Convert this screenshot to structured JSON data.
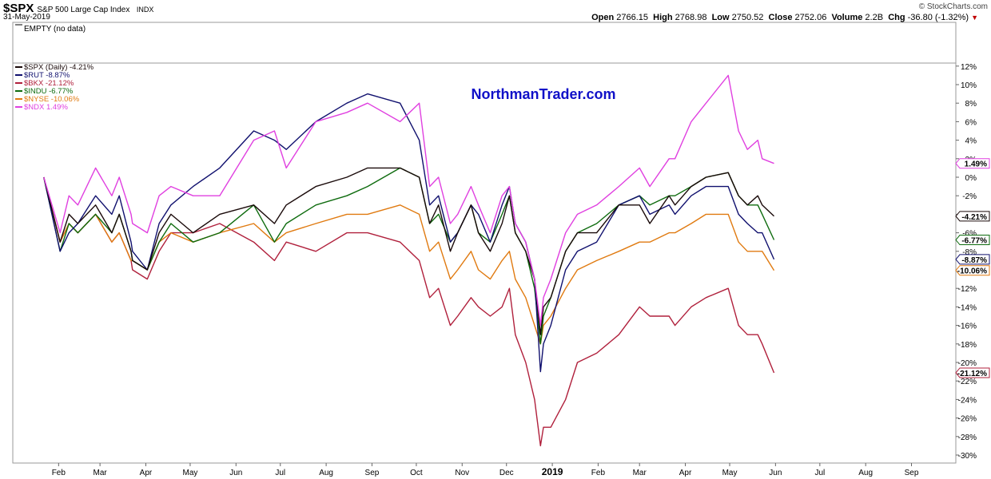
{
  "header": {
    "symbol": "$SPX",
    "description": "S&P 500 Large Cap Index",
    "exchange": "INDX",
    "date": "31-May-2019",
    "credit": "© StockCharts.com",
    "quote": {
      "open_label": "Open",
      "open": "2766.15",
      "high_label": "High",
      "high": "2768.98",
      "low_label": "Low",
      "low": "2750.52",
      "close_label": "Close",
      "close": "2752.06",
      "volume_label": "Volume",
      "volume": "2.2B",
      "chg_label": "Chg",
      "chg": "-36.80 (-1.32%)"
    }
  },
  "empty_panel_label": "EMPTY (no data)",
  "watermark": "NorthmanTrader.com",
  "colors": {
    "SPX": "#1a0a0a",
    "RUT": "#10106e",
    "BKX": "#b0203c",
    "INDU": "#0e6b0e",
    "NYSE": "#e07a10",
    "NDX": "#e040e0",
    "watermark": "#1010c8"
  },
  "chart_data": {
    "type": "line",
    "title": "$SPX S&P 500 Large Cap Index",
    "xlabel": "",
    "ylabel": "",
    "y_unit": "%",
    "ylim": [
      -31,
      13
    ],
    "grid": false,
    "legend_position": "top-left",
    "x_ticks": [
      "Feb",
      "Mar",
      "Apr",
      "May",
      "Jun",
      "Jul",
      "Aug",
      "Sep",
      "Oct",
      "Nov",
      "Dec",
      "2019",
      "Feb",
      "Mar",
      "Apr",
      "May",
      "Jun",
      "Jul",
      "Aug",
      "Sep"
    ],
    "y_ticks": [
      "12%",
      "10%",
      "8%",
      "6%",
      "4%",
      "2%",
      "0%",
      "-2%",
      "-4%",
      "-6%",
      "-8%",
      "-10%",
      "-12%",
      "-14%",
      "-16%",
      "-18%",
      "-20%",
      "-22%",
      "-24%",
      "-26%",
      "-28%",
      "-30%"
    ],
    "y_tick_values": [
      12,
      10,
      8,
      6,
      4,
      2,
      0,
      -2,
      -4,
      -6,
      -8,
      -10,
      -12,
      -14,
      -16,
      -18,
      -20,
      -22,
      -24,
      -26,
      -28,
      -30
    ],
    "x_dates": [
      "2018-01-22",
      "2018-02-02",
      "2018-02-08",
      "2018-02-14",
      "2018-02-26",
      "2018-03-09",
      "2018-03-14",
      "2018-03-22",
      "2018-03-23",
      "2018-04-02",
      "2018-04-10",
      "2018-04-18",
      "2018-05-03",
      "2018-05-21",
      "2018-06-13",
      "2018-06-27",
      "2018-07-05",
      "2018-07-25",
      "2018-08-15",
      "2018-08-29",
      "2018-09-20",
      "2018-10-03",
      "2018-10-10",
      "2018-10-16",
      "2018-10-24",
      "2018-10-29",
      "2018-11-07",
      "2018-11-12",
      "2018-11-20",
      "2018-11-28",
      "2018-12-03",
      "2018-12-07",
      "2018-12-14",
      "2018-12-20",
      "2018-12-24",
      "2018-12-26",
      "2018-12-31",
      "2019-01-10",
      "2019-01-18",
      "2019-01-31",
      "2019-02-15",
      "2019-03-01",
      "2019-03-08",
      "2019-03-21",
      "2019-03-25",
      "2019-04-05",
      "2019-04-15",
      "2019-04-30",
      "2019-05-07",
      "2019-05-13",
      "2019-05-20",
      "2019-05-23",
      "2019-05-31"
    ],
    "series": [
      {
        "name": "$SPX (Daily)",
        "label": "$SPX (Daily) -4.21%",
        "final": "-4.21%",
        "color_key": "SPX",
        "values": [
          0,
          -7,
          -4,
          -5,
          -3,
          -6,
          -4,
          -8,
          -9,
          -10,
          -6,
          -4,
          -6,
          -4,
          -3,
          -5,
          -3,
          -1,
          0,
          1,
          1,
          0,
          -5,
          -3,
          -8,
          -6,
          -3,
          -6,
          -8,
          -5,
          -2,
          -6,
          -8,
          -11,
          -17,
          -14,
          -13,
          -8,
          -6,
          -6,
          -3,
          -3,
          -5,
          -2,
          -3,
          -1,
          0,
          0.5,
          -2,
          -3,
          -2,
          -3,
          -4.21
        ]
      },
      {
        "name": "$RUT",
        "label": "$RUT -8.87%",
        "final": "-8.87%",
        "color_key": "RUT",
        "values": [
          0,
          -8,
          -6,
          -5,
          -2,
          -4,
          -2,
          -7,
          -8,
          -10,
          -5,
          -3,
          -1,
          1,
          5,
          4,
          3,
          6,
          8,
          9,
          8,
          4,
          -3,
          -2,
          -7,
          -6,
          -3,
          -4,
          -7,
          -3,
          -1,
          -5,
          -7,
          -11,
          -21,
          -18,
          -16,
          -10,
          -8,
          -7,
          -3,
          -2,
          -4,
          -3,
          -4,
          -2,
          -1,
          -1,
          -4,
          -5,
          -6,
          -6,
          -8.87
        ]
      },
      {
        "name": "$BKX",
        "label": "$BKX -21.12%",
        "final": "-21.12%",
        "color_key": "BKX",
        "values": [
          0,
          -7,
          -5,
          -6,
          -4,
          -7,
          -6,
          -9,
          -10,
          -11,
          -8,
          -6,
          -6,
          -5,
          -7,
          -9,
          -7,
          -8,
          -6,
          -6,
          -7,
          -9,
          -13,
          -12,
          -16,
          -15,
          -13,
          -14,
          -15,
          -14,
          -12,
          -17,
          -20,
          -24,
          -29,
          -27,
          -27,
          -24,
          -20,
          -19,
          -17,
          -14,
          -15,
          -15,
          -16,
          -14,
          -13,
          -12,
          -16,
          -17,
          -17,
          -18,
          -21.12
        ]
      },
      {
        "name": "$INDU",
        "label": "$INDU -6.77%",
        "final": "-6.77%",
        "color_key": "INDU",
        "values": [
          0,
          -8,
          -5,
          -6,
          -4,
          -6,
          -4,
          -8,
          -9,
          -10,
          -7,
          -5,
          -7,
          -6,
          -3,
          -7,
          -5,
          -3,
          -2,
          -1,
          1,
          0,
          -5,
          -4,
          -7,
          -6,
          -3,
          -6,
          -7,
          -4,
          -2,
          -6,
          -8,
          -12,
          -18,
          -15,
          -13,
          -8,
          -6,
          -5,
          -3,
          -2,
          -3,
          -2,
          -2,
          -1,
          0,
          0.5,
          -2,
          -3,
          -3,
          -4,
          -6.77
        ]
      },
      {
        "name": "$NYSE",
        "label": "$NYSE -10.06%",
        "final": "-10.06%",
        "color_key": "NYSE",
        "values": [
          0,
          -7,
          -5,
          -6,
          -4,
          -7,
          -6,
          -9,
          -9,
          -10,
          -7,
          -6,
          -7,
          -6,
          -5,
          -7,
          -6,
          -5,
          -4,
          -4,
          -3,
          -4,
          -8,
          -7,
          -11,
          -10,
          -8,
          -10,
          -11,
          -9,
          -8,
          -11,
          -13,
          -16,
          -18,
          -16,
          -15,
          -12,
          -10,
          -9,
          -8,
          -7,
          -7,
          -6,
          -6,
          -5,
          -4,
          -4,
          -7,
          -8,
          -8,
          -8,
          -10.06
        ]
      },
      {
        "name": "$NDX",
        "label": "$NDX 1.49%",
        "final": "1.49%",
        "color_key": "NDX",
        "values": [
          0,
          -6,
          -2,
          -3,
          1,
          -2,
          0,
          -4,
          -5,
          -6,
          -2,
          -1,
          -2,
          -2,
          4,
          5,
          1,
          6,
          7,
          8,
          6,
          8,
          -1,
          0,
          -5,
          -4,
          -1,
          -3,
          -6,
          -2,
          -1,
          -5,
          -7,
          -11,
          -16,
          -13,
          -11,
          -6,
          -4,
          -3,
          -1,
          1,
          -1,
          2,
          2,
          6,
          8,
          11,
          5,
          3,
          4,
          2,
          1.49
        ]
      }
    ],
    "end_labels": [
      {
        "text": "1.49%",
        "value": 1.49,
        "color_key": "NDX"
      },
      {
        "text": "-4.21%",
        "value": -4.21,
        "color_key": "SPX"
      },
      {
        "text": "-6.77%",
        "value": -6.77,
        "color_key": "INDU"
      },
      {
        "text": "-8.87%",
        "value": -8.87,
        "color_key": "RUT"
      },
      {
        "text": "-10.06%",
        "value": -10.06,
        "color_key": "NYSE"
      },
      {
        "text": "-21.12%",
        "value": -21.12,
        "color_key": "BKX"
      }
    ]
  }
}
